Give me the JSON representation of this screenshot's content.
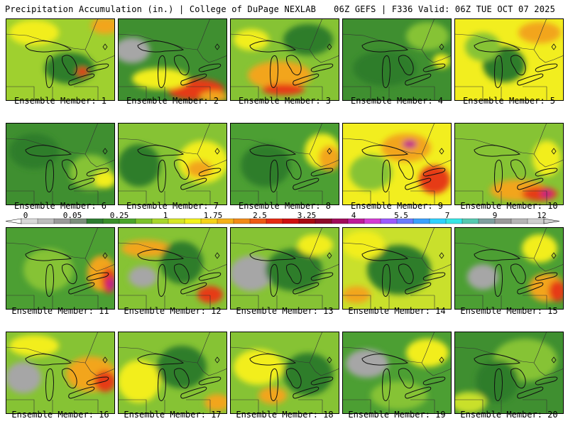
{
  "header": {
    "left_title": "Precipitation Accumulation (in.) | College of DuPage NEXLAB",
    "right_title": "06Z GEFS | F336 Valid: 06Z TUE OCT 07 2025"
  },
  "colorbar": {
    "tick_labels": [
      "0",
      "0.05",
      "0.25",
      "1",
      "1.75",
      "2.5",
      "3.25",
      "4",
      "5.5",
      "7",
      "9",
      "12"
    ],
    "colors": [
      "#d8d8d8",
      "#bdbdbd",
      "#9a9a9a",
      "#7c8f7c",
      "#2e7d32",
      "#3a8f2a",
      "#4aa52b",
      "#7cc22a",
      "#a8d62b",
      "#d7e626",
      "#f3f21b",
      "#f6d21a",
      "#f5b01a",
      "#f28a17",
      "#ee5a15",
      "#e62a12",
      "#cf0f0f",
      "#a80a12",
      "#8e0a2a",
      "#a1095a",
      "#bf1a9a",
      "#d43bd4",
      "#9b59ff",
      "#6a7bff",
      "#3aa0ff",
      "#2fd1ff",
      "#35e6e6",
      "#55c9b0",
      "#7f9f9f",
      "#9a9a9a",
      "#b5b5b5",
      "#cfcfcf"
    ]
  },
  "map_colors": {
    "grey": "#a6a6a6",
    "dark_green": "#2f7d2c",
    "green": "#4c9f33",
    "light_green": "#86c334",
    "yellow_green": "#c9e02c",
    "yellow": "#f2ee1f",
    "orange": "#f2a51a",
    "red": "#e63a12",
    "magenta": "#c01a8c"
  },
  "panels": [
    {
      "label": "Ensemble Member: 1",
      "base": "#9fd02f",
      "blobs": [
        [
          "#f2ee1f",
          40,
          20,
          35,
          18
        ],
        [
          "#2f7d2c",
          90,
          70,
          35,
          22
        ],
        [
          "#e63a12",
          108,
          75,
          8,
          6
        ],
        [
          "#f2a51a",
          140,
          10,
          20,
          12
        ]
      ]
    },
    {
      "label": "Ensemble Member: 2",
      "base": "#3f8f30",
      "blobs": [
        [
          "#a6a6a6",
          20,
          45,
          25,
          18
        ],
        [
          "#e63a12",
          110,
          100,
          40,
          15
        ],
        [
          "#f2ee1f",
          60,
          85,
          40,
          15
        ],
        [
          "#f2a51a",
          135,
          110,
          20,
          8
        ]
      ]
    },
    {
      "label": "Ensemble Member: 3",
      "base": "#86c334",
      "blobs": [
        [
          "#f2a51a",
          70,
          80,
          45,
          20
        ],
        [
          "#e63a12",
          75,
          100,
          30,
          8
        ],
        [
          "#2f7d2c",
          110,
          30,
          35,
          22
        ],
        [
          "#f2ee1f",
          30,
          30,
          25,
          15
        ]
      ]
    },
    {
      "label": "Ensemble Member: 4",
      "base": "#3f8f30",
      "blobs": [
        [
          "#86c334",
          120,
          25,
          30,
          20
        ],
        [
          "#2f7d2c",
          60,
          70,
          45,
          25
        ],
        [
          "#f2ee1f",
          140,
          60,
          12,
          10
        ]
      ]
    },
    {
      "label": "Ensemble Member: 5",
      "base": "#f2ee1f",
      "blobs": [
        [
          "#2f7d2c",
          70,
          65,
          30,
          25
        ],
        [
          "#f2a51a",
          120,
          20,
          30,
          15
        ],
        [
          "#86c334",
          40,
          40,
          25,
          20
        ]
      ]
    },
    {
      "label": "Ensemble Member: 6",
      "base": "#3f8f30",
      "blobs": [
        [
          "#86c334",
          120,
          70,
          30,
          25
        ],
        [
          "#f2ee1f",
          140,
          80,
          15,
          12
        ],
        [
          "#2f7d2c",
          40,
          40,
          35,
          25
        ]
      ]
    },
    {
      "label": "Ensemble Member: 7",
      "base": "#86c334",
      "blobs": [
        [
          "#f2ee1f",
          120,
          55,
          35,
          30
        ],
        [
          "#f2a51a",
          115,
          65,
          18,
          12
        ],
        [
          "#2f7d2c",
          30,
          60,
          30,
          30
        ]
      ]
    },
    {
      "label": "Ensemble Member: 8",
      "base": "#4c9f33",
      "blobs": [
        [
          "#f2ee1f",
          130,
          40,
          25,
          25
        ],
        [
          "#f2a51a",
          140,
          50,
          15,
          18
        ],
        [
          "#2f7d2c",
          50,
          60,
          35,
          30
        ]
      ]
    },
    {
      "label": "Ensemble Member: 9",
      "base": "#f2ee1f",
      "blobs": [
        [
          "#f2a51a",
          90,
          35,
          35,
          20
        ],
        [
          "#c01a8c",
          95,
          30,
          10,
          6
        ],
        [
          "#e63a12",
          130,
          80,
          22,
          20
        ],
        [
          "#86c334",
          40,
          70,
          30,
          25
        ]
      ]
    },
    {
      "label": "Ensemble Member: 10",
      "base": "#86c334",
      "blobs": [
        [
          "#f2a51a",
          90,
          95,
          40,
          15
        ],
        [
          "#e63a12",
          120,
          100,
          25,
          10
        ],
        [
          "#c01a8c",
          130,
          100,
          8,
          5
        ],
        [
          "#f2ee1f",
          130,
          50,
          20,
          25
        ]
      ]
    },
    {
      "label": "Ensemble Member: 11",
      "base": "#4c9f33",
      "blobs": [
        [
          "#f2a51a",
          135,
          65,
          20,
          25
        ],
        [
          "#e63a12",
          145,
          75,
          10,
          18
        ],
        [
          "#c01a8c",
          148,
          80,
          6,
          8
        ],
        [
          "#86c334",
          60,
          60,
          35,
          30
        ]
      ]
    },
    {
      "label": "Ensemble Member: 12",
      "base": "#86c334",
      "blobs": [
        [
          "#a6a6a6",
          35,
          70,
          20,
          15
        ],
        [
          "#f2a51a",
          40,
          30,
          35,
          12
        ],
        [
          "#e63a12",
          130,
          95,
          18,
          12
        ],
        [
          "#2f7d2c",
          90,
          50,
          30,
          30
        ]
      ]
    },
    {
      "label": "Ensemble Member: 13",
      "base": "#86c334",
      "blobs": [
        [
          "#a6a6a6",
          30,
          65,
          30,
          25
        ],
        [
          "#2f7d2c",
          90,
          60,
          40,
          30
        ],
        [
          "#f2ee1f",
          120,
          25,
          25,
          15
        ]
      ]
    },
    {
      "label": "Ensemble Member: 14",
      "base": "#c9e02c",
      "blobs": [
        [
          "#2f7d2c",
          80,
          60,
          45,
          35
        ],
        [
          "#f2ee1f",
          30,
          25,
          30,
          20
        ],
        [
          "#f2a51a",
          20,
          95,
          20,
          12
        ]
      ]
    },
    {
      "label": "Ensemble Member: 15",
      "base": "#4c9f33",
      "blobs": [
        [
          "#a6a6a6",
          40,
          70,
          22,
          18
        ],
        [
          "#f2a51a",
          130,
          85,
          25,
          20
        ],
        [
          "#e63a12",
          145,
          90,
          12,
          15
        ],
        [
          "#f2ee1f",
          120,
          30,
          25,
          20
        ]
      ]
    },
    {
      "label": "Ensemble Member: 16",
      "base": "#86c334",
      "blobs": [
        [
          "#a6a6a6",
          25,
          65,
          25,
          22
        ],
        [
          "#f2a51a",
          120,
          60,
          35,
          25
        ],
        [
          "#e63a12",
          140,
          70,
          15,
          15
        ],
        [
          "#f2ee1f",
          40,
          20,
          35,
          15
        ]
      ]
    },
    {
      "label": "Ensemble Member: 17",
      "base": "#86c334",
      "blobs": [
        [
          "#f2ee1f",
          30,
          70,
          30,
          30
        ],
        [
          "#2f7d2c",
          90,
          50,
          35,
          30
        ],
        [
          "#f2a51a",
          140,
          100,
          18,
          12
        ]
      ]
    },
    {
      "label": "Ensemble Member: 18",
      "base": "#86c334",
      "blobs": [
        [
          "#f2ee1f",
          40,
          50,
          35,
          25
        ],
        [
          "#2f7d2c",
          110,
          60,
          35,
          30
        ],
        [
          "#f2a51a",
          60,
          90,
          20,
          12
        ]
      ]
    },
    {
      "label": "Ensemble Member: 19",
      "base": "#4c9f33",
      "blobs": [
        [
          "#a6a6a6",
          35,
          45,
          30,
          20
        ],
        [
          "#f2ee1f",
          120,
          30,
          30,
          20
        ],
        [
          "#86c334",
          80,
          90,
          40,
          20
        ]
      ]
    },
    {
      "label": "Ensemble Member: 20",
      "base": "#3f8f30",
      "blobs": [
        [
          "#86c334",
          100,
          40,
          45,
          30
        ],
        [
          "#2f7d2c",
          60,
          70,
          30,
          30
        ],
        [
          "#c9e02c",
          20,
          100,
          25,
          15
        ]
      ]
    }
  ]
}
